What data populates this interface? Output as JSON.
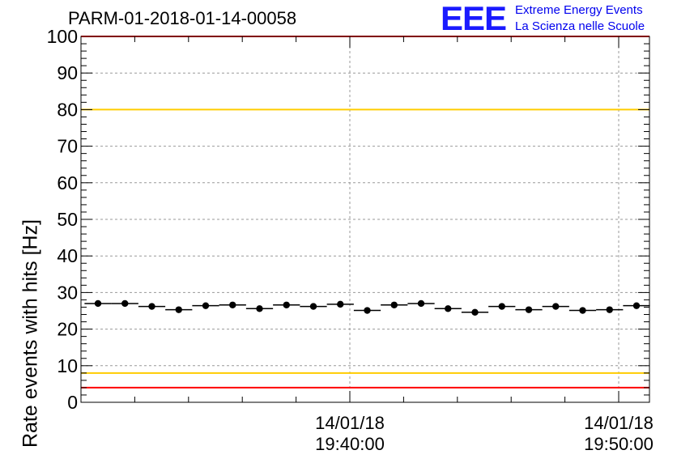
{
  "header": {
    "title": "PARM-01-2018-01-14-00058",
    "logo_text": "EEE",
    "logo_line1": "Extreme Energy Events",
    "logo_line2": "La Scienza nelle Scuole"
  },
  "chart_data": {
    "type": "scatter",
    "title": "PARM-01-2018-01-14-00058",
    "ylabel": "Rate events with hits [Hz]",
    "xlabel": "",
    "ylim": [
      0,
      100
    ],
    "y_ticks": [
      "0",
      "10",
      "20",
      "30",
      "40",
      "50",
      "60",
      "70",
      "80",
      "90",
      "100"
    ],
    "x_tick_labels": [
      {
        "date": "14/01/18",
        "time": "19:40:00"
      },
      {
        "date": "14/01/18",
        "time": "19:50:00"
      }
    ],
    "grid": true,
    "reference_lines": [
      {
        "value": 100,
        "color": "#ff0000"
      },
      {
        "value": 80,
        "color": "#ffcc00"
      },
      {
        "value": 8,
        "color": "#ffcc00"
      },
      {
        "value": 4,
        "color": "#ff0000"
      }
    ],
    "series": [
      {
        "values": [
          27.0,
          27.0,
          26.2,
          25.3,
          26.4,
          26.6,
          25.6,
          26.6,
          26.2,
          26.8,
          25.1,
          26.6,
          27.0,
          25.6,
          24.6,
          26.2,
          25.3,
          26.2,
          25.1,
          25.3,
          26.4
        ],
        "marker_color": "#000000"
      }
    ]
  }
}
